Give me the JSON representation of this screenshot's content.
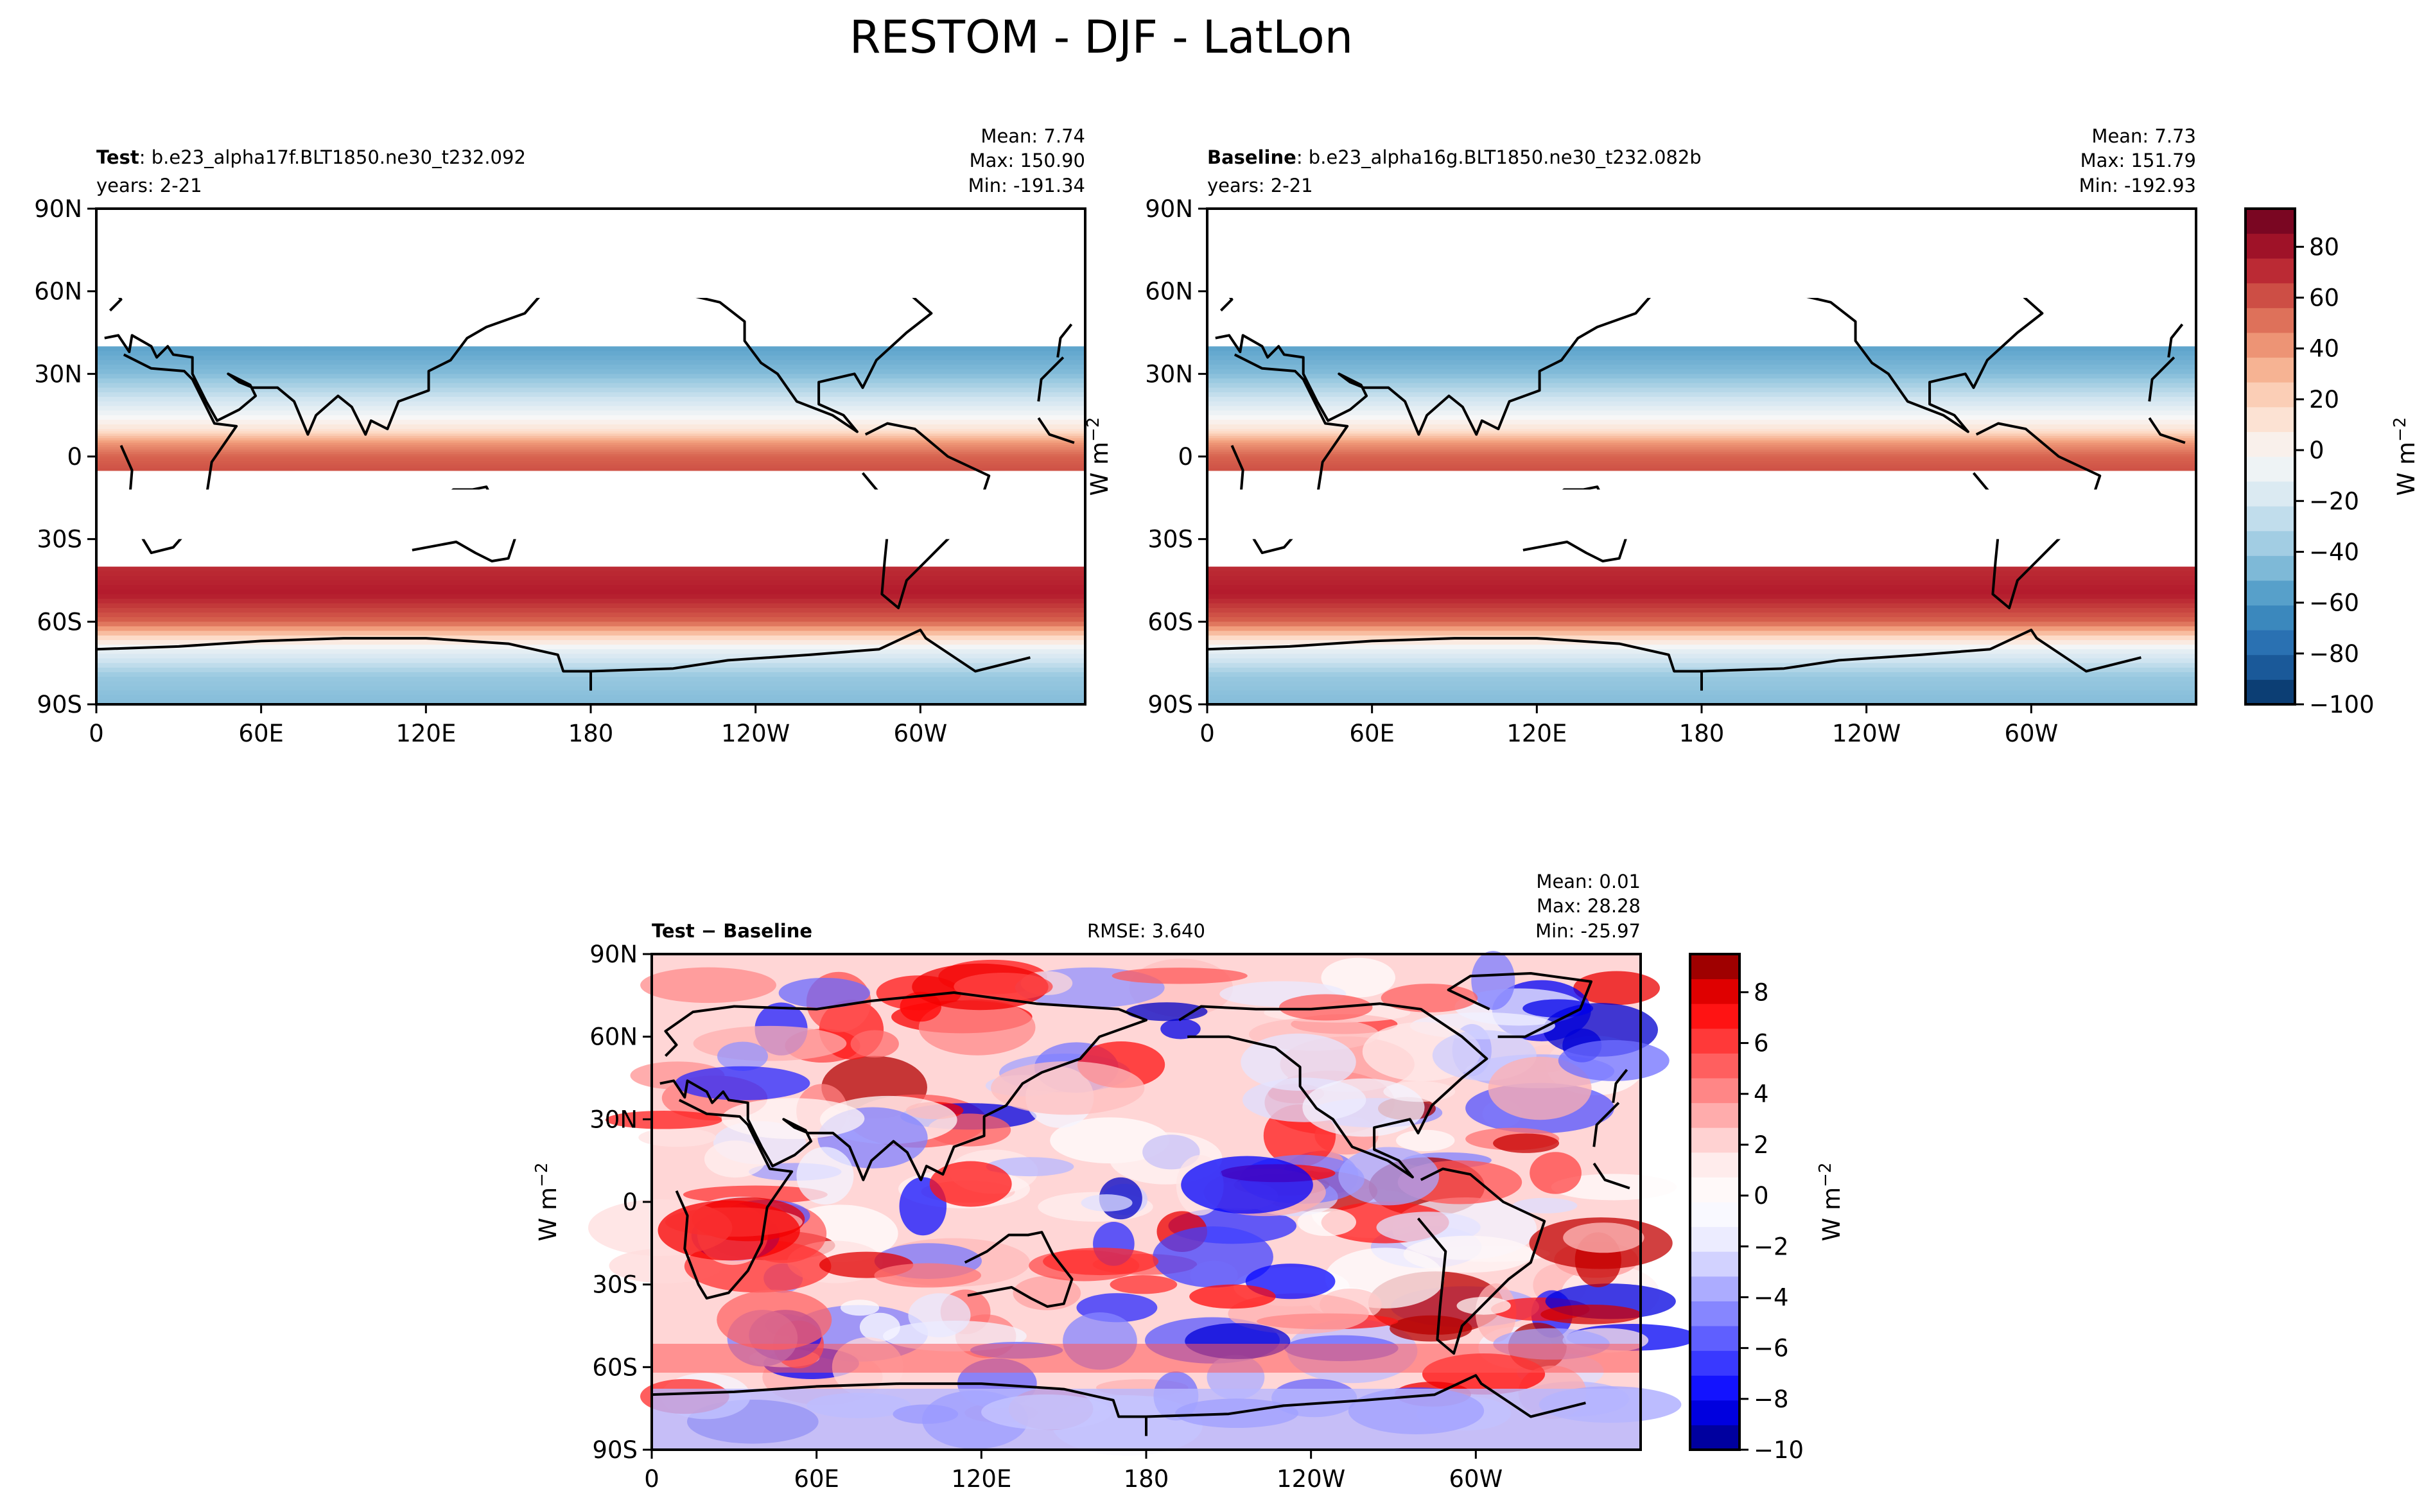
{
  "figure_title": "RESTOM - DJF - LatLon",
  "chart_data": [
    {
      "type": "heatmap",
      "panel": "test",
      "label_bold": "Test",
      "label_rest": ": b.e23_alpha17f.BLT1850.ne30_t232.092",
      "years": "years: 2-21",
      "stats": {
        "mean": "Mean:  7.74",
        "max": "Max: 150.90",
        "min": "Min: -191.34"
      },
      "x_tick_labels": [
        "0",
        "60E",
        "120E",
        "180",
        "120W",
        "60W"
      ],
      "y_tick_labels": [
        "90N",
        "60N",
        "30N",
        "0",
        "30S",
        "60S",
        "90S"
      ],
      "ylabel": "W m",
      "ylabel_exp": "−2",
      "xlim": [
        0,
        360
      ],
      "ylim": [
        -90,
        90
      ],
      "zonal_profile": {
        "lat": [
          90,
          70,
          58,
          50,
          40,
          30,
          20,
          10,
          5,
          0,
          -5,
          -12,
          -20,
          -30,
          -40,
          -50,
          -60,
          -70,
          -80,
          -90
        ],
        "value": [
          -200,
          -200,
          -200,
          -200,
          -55,
          -45,
          -20,
          10,
          40,
          55,
          60,
          -200,
          -200,
          -200,
          70,
          75,
          55,
          -10,
          -40,
          -45
        ]
      }
    },
    {
      "type": "heatmap",
      "panel": "baseline",
      "label_bold": "Baseline",
      "label_rest": ": b.e23_alpha16g.BLT1850.ne30_t232.082b",
      "years": "years: 2-21",
      "stats": {
        "mean": "Mean:  7.73",
        "max": "Max: 151.79",
        "min": "Min: -192.93"
      },
      "x_tick_labels": [
        "0",
        "60E",
        "120E",
        "180",
        "120W",
        "60W"
      ],
      "y_tick_labels": [
        "90N",
        "60N",
        "30N",
        "0",
        "30S",
        "60S",
        "90S"
      ],
      "xlim": [
        0,
        360
      ],
      "ylim": [
        -90,
        90
      ],
      "colorbar": {
        "label": "W m",
        "label_exp": "−2",
        "range": [
          -100,
          95
        ],
        "ticks": [
          "80",
          "60",
          "40",
          "20",
          "0",
          "−20",
          "−40",
          "−60",
          "−80",
          "−100"
        ],
        "tick_values": [
          80,
          60,
          40,
          20,
          0,
          -20,
          -40,
          -60,
          -80,
          -100
        ],
        "cmap": "RdBu_r",
        "colors": [
          "#053061",
          "#2166ac",
          "#4393c3",
          "#92c5de",
          "#d1e5f0",
          "#f7f7f7",
          "#fddbc7",
          "#f4a582",
          "#d6604d",
          "#b2182b",
          "#67001f"
        ]
      }
    },
    {
      "type": "heatmap",
      "panel": "difference",
      "label_bold": "Test − Baseline",
      "rmse": "RMSE: 3.640",
      "stats": {
        "mean": "Mean:  0.01",
        "max": "Max: 28.28",
        "min": "Min: -25.97"
      },
      "x_tick_labels": [
        "0",
        "60E",
        "120E",
        "180",
        "120W",
        "60W"
      ],
      "y_tick_labels": [
        "90N",
        "60N",
        "30N",
        "0",
        "30S",
        "60S",
        "90S"
      ],
      "ylabel": "W m",
      "ylabel_exp": "−2",
      "xlim": [
        0,
        360
      ],
      "ylim": [
        -90,
        90
      ],
      "colorbar": {
        "label": "W m",
        "label_exp": "−2",
        "range": [
          -10,
          9.5
        ],
        "ticks": [
          "8",
          "6",
          "4",
          "2",
          "0",
          "−2",
          "−4",
          "−6",
          "−8",
          "−10"
        ],
        "tick_values": [
          8,
          6,
          4,
          2,
          0,
          -2,
          -4,
          -6,
          -8,
          -10
        ],
        "cmap": "bwr",
        "colors": [
          "#00007f",
          "#0000ff",
          "#4c4cff",
          "#9999ff",
          "#e5e5ff",
          "#ffffff",
          "#ffe5e5",
          "#ff9999",
          "#ff4c4c",
          "#ff0000",
          "#7f0000"
        ]
      }
    }
  ]
}
